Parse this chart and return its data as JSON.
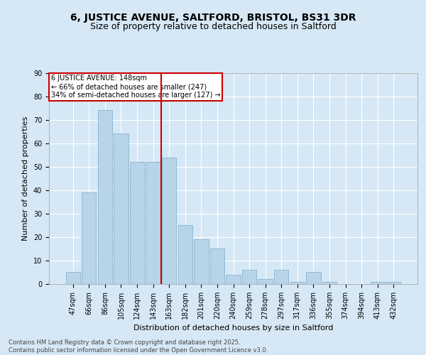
{
  "title1": "6, JUSTICE AVENUE, SALTFORD, BRISTOL, BS31 3DR",
  "title2": "Size of property relative to detached houses in Saltford",
  "xlabel": "Distribution of detached houses by size in Saltford",
  "ylabel": "Number of detached properties",
  "categories": [
    "47sqm",
    "66sqm",
    "86sqm",
    "105sqm",
    "124sqm",
    "143sqm",
    "163sqm",
    "182sqm",
    "201sqm",
    "220sqm",
    "240sqm",
    "259sqm",
    "278sqm",
    "297sqm",
    "317sqm",
    "336sqm",
    "355sqm",
    "374sqm",
    "394sqm",
    "413sqm",
    "432sqm"
  ],
  "values": [
    5,
    39,
    74,
    64,
    52,
    52,
    54,
    25,
    19,
    15,
    4,
    6,
    2,
    6,
    1,
    5,
    1,
    0,
    0,
    1,
    1
  ],
  "bar_color": "#b8d4e8",
  "bar_edge_color": "#8ab4d0",
  "red_line_index": 6,
  "annotation_text": "6 JUSTICE AVENUE: 148sqm\n← 66% of detached houses are smaller (247)\n34% of semi-detached houses are larger (127) →",
  "annotation_box_color": "#ffffff",
  "annotation_box_edge_color": "#cc0000",
  "bg_color": "#d6e8f5",
  "plot_bg_color": "#d6e8f5",
  "footer": "Contains HM Land Registry data © Crown copyright and database right 2025.\nContains public sector information licensed under the Open Government Licence v3.0.",
  "ylim": [
    0,
    90
  ],
  "yticks": [
    0,
    10,
    20,
    30,
    40,
    50,
    60,
    70,
    80,
    90
  ],
  "red_line_color": "#cc0000",
  "title_fontsize": 10,
  "subtitle_fontsize": 9,
  "footer_fontsize": 6,
  "axis_label_fontsize": 8,
  "tick_fontsize": 7,
  "annot_fontsize": 7
}
